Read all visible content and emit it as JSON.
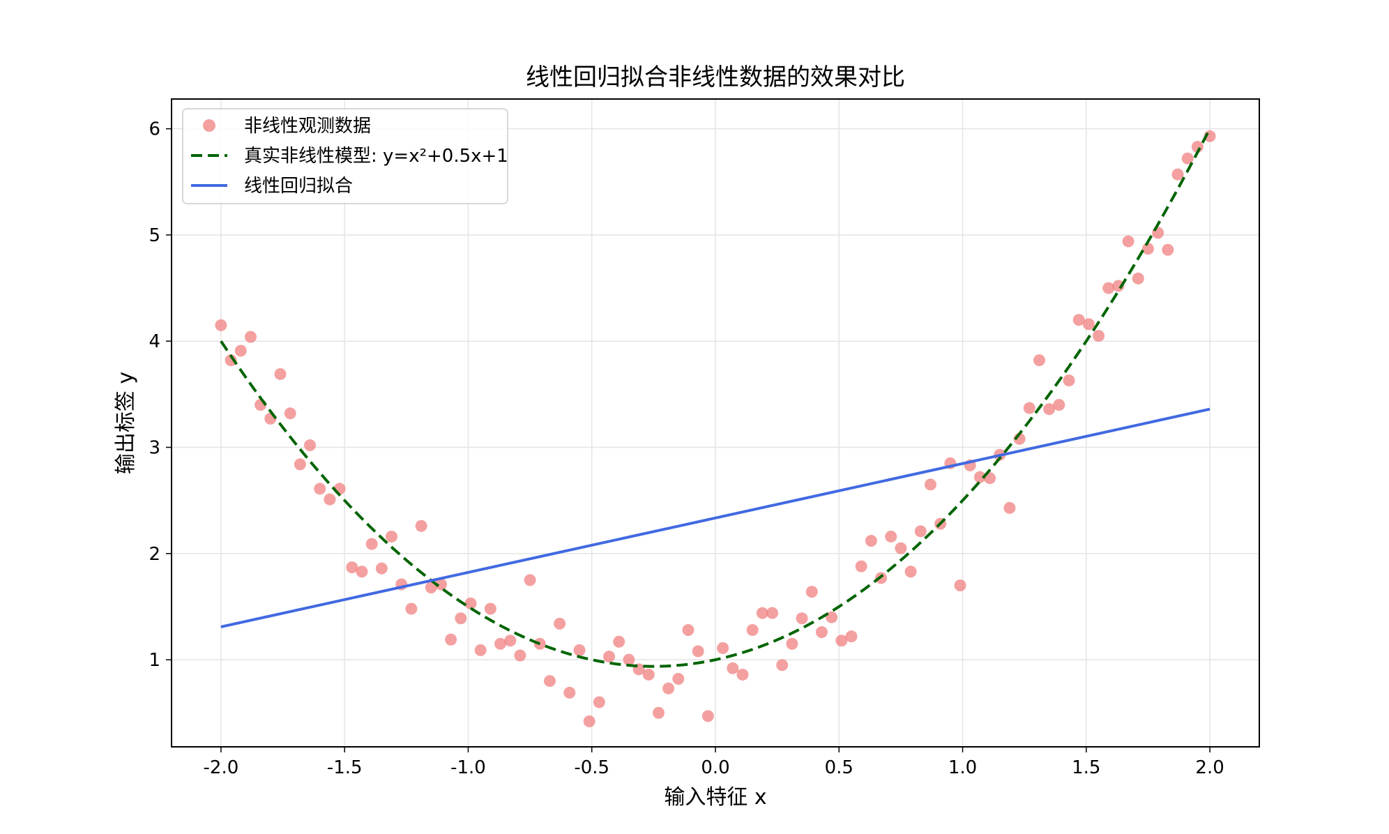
{
  "chart_data": {
    "type": "scatter",
    "title": "线性回归拟合非线性数据的效果对比",
    "xlabel": "输入特征 x",
    "ylabel": "输出标签 y",
    "xlim": [
      -2.2,
      2.2
    ],
    "ylim": [
      0.18,
      6.28
    ],
    "xticks": [
      -2.0,
      -1.5,
      -1.0,
      -0.5,
      0.0,
      0.5,
      1.0,
      1.5,
      2.0
    ],
    "xtick_labels": [
      "-2.0",
      "-1.5",
      "-1.0",
      "-0.5",
      "0.0",
      "0.5",
      "1.0",
      "1.5",
      "2.0"
    ],
    "yticks": [
      1,
      2,
      3,
      4,
      5,
      6
    ],
    "ytick_labels": [
      "1",
      "2",
      "3",
      "4",
      "5",
      "6"
    ],
    "grid": true,
    "legend_position": "top-left",
    "series": [
      {
        "name": "非线性观测数据",
        "kind": "scatter",
        "color": "#f08080",
        "points": [
          [
            -2.0,
            4.15
          ],
          [
            -1.96,
            3.82
          ],
          [
            -1.92,
            3.91
          ],
          [
            -1.88,
            4.04
          ],
          [
            -1.84,
            3.4
          ],
          [
            -1.8,
            3.27
          ],
          [
            -1.76,
            3.69
          ],
          [
            -1.72,
            3.32
          ],
          [
            -1.68,
            2.84
          ],
          [
            -1.64,
            3.02
          ],
          [
            -1.6,
            2.61
          ],
          [
            -1.56,
            2.51
          ],
          [
            -1.52,
            2.61
          ],
          [
            -1.47,
            1.87
          ],
          [
            -1.43,
            1.83
          ],
          [
            -1.39,
            2.09
          ],
          [
            -1.35,
            1.86
          ],
          [
            -1.31,
            2.16
          ],
          [
            -1.27,
            1.71
          ],
          [
            -1.23,
            1.48
          ],
          [
            -1.19,
            2.26
          ],
          [
            -1.15,
            1.68
          ],
          [
            -1.11,
            1.71
          ],
          [
            -1.07,
            1.19
          ],
          [
            -1.03,
            1.39
          ],
          [
            -0.99,
            1.53
          ],
          [
            -0.95,
            1.09
          ],
          [
            -0.91,
            1.48
          ],
          [
            -0.87,
            1.15
          ],
          [
            -0.83,
            1.18
          ],
          [
            -0.79,
            1.04
          ],
          [
            -0.75,
            1.75
          ],
          [
            -0.71,
            1.15
          ],
          [
            -0.67,
            0.8
          ],
          [
            -0.63,
            1.34
          ],
          [
            -0.59,
            0.69
          ],
          [
            -0.55,
            1.09
          ],
          [
            -0.51,
            0.42
          ],
          [
            -0.47,
            0.6
          ],
          [
            -0.43,
            1.03
          ],
          [
            -0.39,
            1.17
          ],
          [
            -0.35,
            1.0
          ],
          [
            -0.31,
            0.91
          ],
          [
            -0.27,
            0.86
          ],
          [
            -0.23,
            0.5
          ],
          [
            -0.19,
            0.73
          ],
          [
            -0.15,
            0.82
          ],
          [
            -0.11,
            1.28
          ],
          [
            -0.07,
            1.08
          ],
          [
            -0.03,
            0.47
          ],
          [
            0.03,
            1.11
          ],
          [
            0.07,
            0.92
          ],
          [
            0.11,
            0.86
          ],
          [
            0.15,
            1.28
          ],
          [
            0.19,
            1.44
          ],
          [
            0.23,
            1.44
          ],
          [
            0.27,
            0.95
          ],
          [
            0.31,
            1.15
          ],
          [
            0.35,
            1.39
          ],
          [
            0.39,
            1.64
          ],
          [
            0.43,
            1.26
          ],
          [
            0.47,
            1.4
          ],
          [
            0.51,
            1.18
          ],
          [
            0.55,
            1.22
          ],
          [
            0.59,
            1.88
          ],
          [
            0.63,
            2.12
          ],
          [
            0.67,
            1.77
          ],
          [
            0.71,
            2.16
          ],
          [
            0.75,
            2.05
          ],
          [
            0.79,
            1.83
          ],
          [
            0.83,
            2.21
          ],
          [
            0.87,
            2.65
          ],
          [
            0.91,
            2.28
          ],
          [
            0.95,
            2.85
          ],
          [
            0.99,
            1.7
          ],
          [
            1.03,
            2.83
          ],
          [
            1.07,
            2.72
          ],
          [
            1.11,
            2.71
          ],
          [
            1.15,
            2.93
          ],
          [
            1.19,
            2.43
          ],
          [
            1.23,
            3.08
          ],
          [
            1.27,
            3.37
          ],
          [
            1.31,
            3.82
          ],
          [
            1.35,
            3.36
          ],
          [
            1.39,
            3.4
          ],
          [
            1.43,
            3.63
          ],
          [
            1.47,
            4.2
          ],
          [
            1.51,
            4.16
          ],
          [
            1.55,
            4.05
          ],
          [
            1.59,
            4.5
          ],
          [
            1.63,
            4.52
          ],
          [
            1.67,
            4.94
          ],
          [
            1.71,
            4.59
          ],
          [
            1.75,
            4.87
          ],
          [
            1.79,
            5.02
          ],
          [
            1.83,
            4.86
          ],
          [
            1.87,
            5.57
          ],
          [
            1.91,
            5.72
          ],
          [
            1.95,
            5.83
          ],
          [
            2.0,
            5.93
          ]
        ]
      },
      {
        "name": "真实非线性模型: y=x²+0.5x+1",
        "kind": "function",
        "formula": "y=x²+0.5x+1",
        "x_range": [
          -2.0,
          2.0
        ],
        "color": "#006400",
        "linestyle": "dashed"
      },
      {
        "name": "线性回归拟合",
        "kind": "line",
        "color": "#4169e1",
        "points": [
          [
            -2.0,
            1.31
          ],
          [
            2.0,
            3.36
          ]
        ]
      }
    ]
  }
}
